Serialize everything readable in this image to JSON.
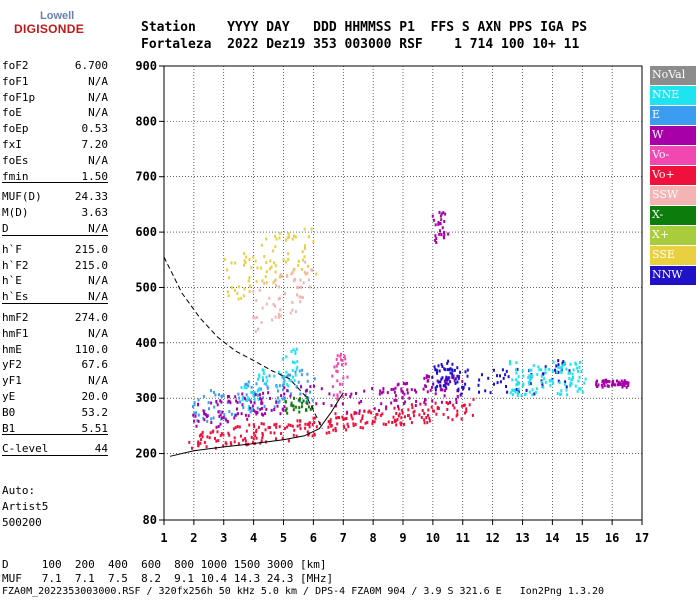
{
  "logo": {
    "line1": "Lowell",
    "line2": "DIGISONDE"
  },
  "header": {
    "row1": "Station    YYYY DAY   DDD HHMMSS P1  FFS S AXN PPS IGA PS",
    "row2": "Fortaleza  2022 Dez19 353 003000 RSF    1 714 100 10+ 11"
  },
  "params": [
    {
      "label": "foF2",
      "value": "6.700"
    },
    {
      "label": "foF1",
      "value": "N/A"
    },
    {
      "label": "foF1p",
      "value": "N/A"
    },
    {
      "label": "foE",
      "value": "N/A"
    },
    {
      "label": "foEp",
      "value": "0.53"
    },
    {
      "label": "fxI",
      "value": "7.20"
    },
    {
      "label": "foEs",
      "value": "N/A"
    },
    {
      "label": "fmin",
      "value": "1.50"
    },
    {
      "sep": true
    },
    {
      "label": "MUF(D)",
      "value": "24.33"
    },
    {
      "label": "M(D)",
      "value": "3.63"
    },
    {
      "label": "D",
      "value": "N/A"
    },
    {
      "sep": true
    },
    {
      "label": "h`F",
      "value": "215.0"
    },
    {
      "label": "h`F2",
      "value": "215.0"
    },
    {
      "label": "h`E",
      "value": "N/A"
    },
    {
      "label": "h`Es",
      "value": "N/A"
    },
    {
      "sep": true
    },
    {
      "label": "hmF2",
      "value": "274.0"
    },
    {
      "label": "hmF1",
      "value": "N/A"
    },
    {
      "label": "hmE",
      "value": "110.0"
    },
    {
      "label": "yF2",
      "value": "67.6"
    },
    {
      "label": "yF1",
      "value": "N/A"
    },
    {
      "label": "yE",
      "value": "20.0"
    },
    {
      "label": "B0",
      "value": "53.2"
    },
    {
      "label": "B1",
      "value": "5.51"
    },
    {
      "sep": true
    },
    {
      "label": "C-level",
      "value": "44"
    },
    {
      "sep": true
    }
  ],
  "auto": [
    "Auto:",
    "Artist5",
    "500200"
  ],
  "legend": [
    {
      "name": "NoVal",
      "color": "#8c8c8c"
    },
    {
      "name": "NNE",
      "color": "#1ee4f0"
    },
    {
      "name": "E",
      "color": "#3c9cf0"
    },
    {
      "name": "W",
      "color": "#a800a8"
    },
    {
      "name": "Vo-",
      "color": "#f048b0"
    },
    {
      "name": "Vo+",
      "color": "#f0103c"
    },
    {
      "name": "SSW",
      "color": "#f4b4b4"
    },
    {
      "name": "X-",
      "color": "#0c7c0c"
    },
    {
      "name": "X+",
      "color": "#a8cc3c"
    },
    {
      "name": "SSE",
      "color": "#e8d040"
    },
    {
      "name": "NNW",
      "color": "#2010c8"
    }
  ],
  "chart_data": {
    "type": "scatter",
    "xlim": [
      1,
      17
    ],
    "ylim": [
      80,
      900
    ],
    "x_ticks": [
      1,
      2,
      3,
      4,
      5,
      6,
      7,
      8,
      9,
      10,
      11,
      12,
      13,
      14,
      15,
      16,
      17
    ],
    "y_ticks": [
      80,
      200,
      300,
      400,
      500,
      600,
      700,
      800,
      900
    ],
    "grid": true,
    "clusters": [
      {
        "series": "Vo+",
        "x": [
          1.8,
          3.0,
          4.0,
          5.0,
          6.0,
          7.0,
          8.0,
          9.0,
          10.0,
          11.3
        ],
        "y": [
          220,
          232,
          238,
          242,
          250,
          262,
          268,
          272,
          278,
          285
        ],
        "spread": 18
      },
      {
        "series": "E",
        "x": [
          2.0,
          3.0,
          4.0,
          5.0,
          6.0
        ],
        "y": [
          280,
          295,
          310,
          320,
          330
        ],
        "spread": 30
      },
      {
        "series": "NNE",
        "x": [
          3.5,
          4.5,
          5.5
        ],
        "y": [
          300,
          330,
          370
        ],
        "spread": 30
      },
      {
        "series": "W",
        "x": [
          2.0,
          3.0,
          4.0,
          5.0,
          8.0,
          9.0,
          10.0,
          11.0
        ],
        "y": [
          265,
          280,
          290,
          300,
          300,
          310,
          320,
          320
        ],
        "spread": 25
      },
      {
        "series": "SSE",
        "x": [
          3.0,
          4.0,
          5.0,
          6.0
        ],
        "y": [
          515,
          540,
          560,
          570
        ],
        "spread": 45
      },
      {
        "series": "NNW",
        "x": [
          10.0,
          10.5,
          11.0,
          13.0,
          14.5
        ],
        "y": [
          340,
          345,
          330,
          330,
          350
        ],
        "spread": 25
      },
      {
        "series": "NNE",
        "x": [
          12.5,
          13.1,
          13.8,
          14.5,
          15.0
        ],
        "y": [
          340,
          335,
          345,
          335,
          340
        ],
        "spread": 30
      },
      {
        "series": "W",
        "x": [
          10.0,
          10.5
        ],
        "y": [
          605,
          620
        ],
        "spread": 25
      },
      {
        "series": "Vo-",
        "x": [
          6.7,
          7.0
        ],
        "y": [
          330,
          350
        ],
        "spread": 40
      },
      {
        "series": "X-",
        "x": [
          5.0,
          6.0
        ],
        "y": [
          285,
          295
        ],
        "spread": 15
      },
      {
        "series": "SSW",
        "x": [
          4.0,
          5.0,
          6.0
        ],
        "y": [
          460,
          490,
          520
        ],
        "spread": 40
      },
      {
        "series": "W",
        "x": [
          15.5,
          16.0,
          16.5
        ],
        "y": [
          328,
          330,
          328
        ],
        "spread": 6
      }
    ],
    "curve_dashed": {
      "x": [
        1.0,
        1.6,
        2.2,
        2.8,
        3.4,
        4.0,
        4.6,
        5.2,
        5.8,
        6.3
      ],
      "y": [
        555,
        490,
        445,
        410,
        385,
        368,
        350,
        335,
        300,
        245
      ]
    },
    "curve_solid": {
      "x": [
        1.2,
        2.0,
        3.0,
        4.0,
        5.0,
        5.7,
        6.2,
        6.6,
        7.0
      ],
      "y": [
        195,
        205,
        212,
        218,
        225,
        232,
        245,
        275,
        310
      ]
    }
  },
  "footer": {
    "line1": "D     100  200  400  600  800 1000 1500 3000 [km]",
    "line2": "MUF   7.1  7.1  7.5  8.2  9.1 10.4 14.3 24.3 [MHz]",
    "line3": "FZA0M_2022353003000.RSF / 320fx256h 50 kHz 5.0 km / DPS-4 FZA0M 904 / 3.9 S 321.6 E   Ion2Png 1.3.20"
  }
}
